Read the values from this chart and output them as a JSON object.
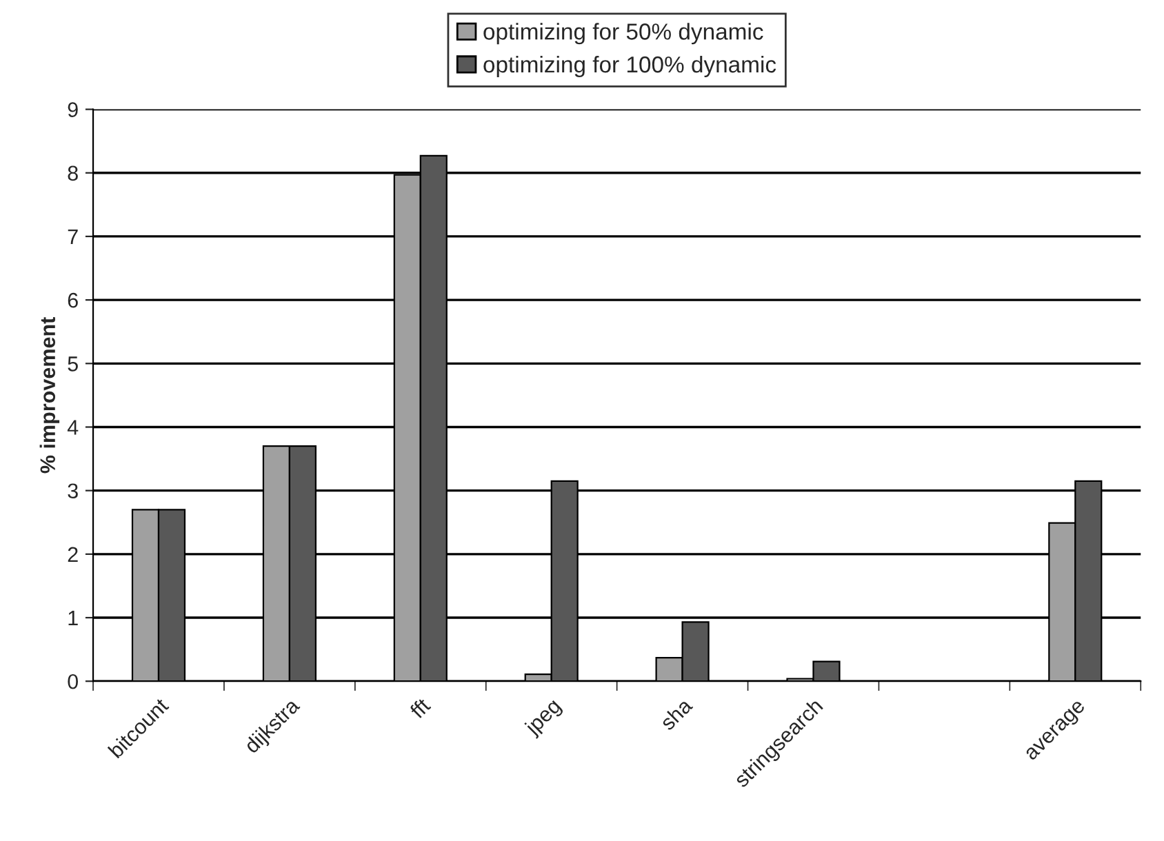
{
  "chart_data": {
    "type": "bar",
    "ylabel": "% improvement",
    "categories": [
      "bitcount",
      "dijkstra",
      "fft",
      "jpeg",
      "sha",
      "stringsearch",
      null,
      "average"
    ],
    "series": [
      {
        "name": "optimizing for 50% dynamic",
        "color": "#a0a0a0",
        "values": [
          2.7,
          3.7,
          7.97,
          0.11,
          0.37,
          0.04,
          null,
          2.49
        ]
      },
      {
        "name": "optimizing for 100% dynamic",
        "color": "#585858",
        "values": [
          2.7,
          3.7,
          8.27,
          3.15,
          0.93,
          0.31,
          null,
          3.15
        ]
      }
    ],
    "ylim": [
      0,
      9
    ],
    "yticks": [
      0,
      1,
      2,
      3,
      4,
      5,
      6,
      7,
      8,
      9
    ],
    "grid": "y",
    "legend": "top"
  }
}
